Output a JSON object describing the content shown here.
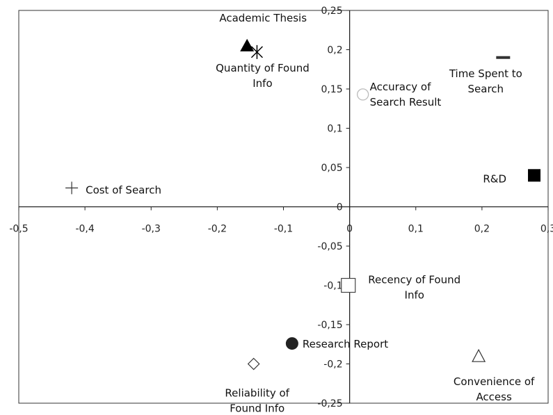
{
  "chart_data": {
    "type": "scatter",
    "xlim": [
      -0.5,
      0.3
    ],
    "ylim": [
      -0.25,
      0.25
    ],
    "x_ticks": [
      -0.5,
      -0.4,
      -0.3,
      -0.2,
      -0.1,
      0,
      0.1,
      0.2,
      0.3
    ],
    "y_ticks": [
      -0.25,
      -0.2,
      -0.15,
      -0.1,
      -0.05,
      0,
      0.05,
      0.1,
      0.15,
      0.2,
      0.25
    ],
    "x_tick_labels": [
      "-0,5",
      "-0,4",
      "-0,3",
      "-0,2",
      "-0,1",
      "0",
      "0,1",
      "0,2",
      "0,3"
    ],
    "y_tick_labels": [
      "-0,25",
      "-0,2",
      "-0,15",
      "-0,1",
      "-0,05",
      "0",
      "0,05",
      "0,1",
      "0,15",
      "0,2",
      "0,25"
    ],
    "grid": false,
    "axes_through_origin": true,
    "points": [
      {
        "lines": [
          "Academic Thesis"
        ],
        "x": -0.155,
        "y": 0.205,
        "marker": "triangle-filled",
        "label_anchor": "middle"
      },
      {
        "lines": [
          "Quantity of Found",
          "Info"
        ],
        "x": -0.14,
        "y": 0.197,
        "marker": "asterisk",
        "label_anchor": "middle"
      },
      {
        "lines": [
          "Accuracy of",
          "Search Result"
        ],
        "x": 0.02,
        "y": 0.143,
        "marker": "circle-open-light",
        "label_anchor": "start"
      },
      {
        "lines": [
          "Time Spent to",
          "Search"
        ],
        "x": 0.232,
        "y": 0.19,
        "marker": "dash",
        "label_anchor": "middle"
      },
      {
        "lines": [
          "R&D"
        ],
        "x": 0.279,
        "y": 0.04,
        "marker": "square-filled",
        "label_anchor": "end"
      },
      {
        "lines": [
          "Cost of Search"
        ],
        "x": -0.42,
        "y": 0.024,
        "marker": "plus",
        "label_anchor": "start"
      },
      {
        "lines": [
          "Recency of Found",
          "Info"
        ],
        "x": -0.002,
        "y": -0.1,
        "marker": "square-open",
        "label_anchor": "middle"
      },
      {
        "lines": [
          "Research Report"
        ],
        "x": -0.087,
        "y": -0.174,
        "marker": "circle-filled",
        "label_anchor": "start"
      },
      {
        "lines": [
          "Reliability of",
          "Found Info"
        ],
        "x": -0.145,
        "y": -0.2,
        "marker": "diamond-open",
        "label_anchor": "middle"
      },
      {
        "lines": [
          "Convenience of",
          "Access"
        ],
        "x": 0.195,
        "y": -0.19,
        "marker": "triangle-open",
        "label_anchor": "middle"
      }
    ]
  }
}
